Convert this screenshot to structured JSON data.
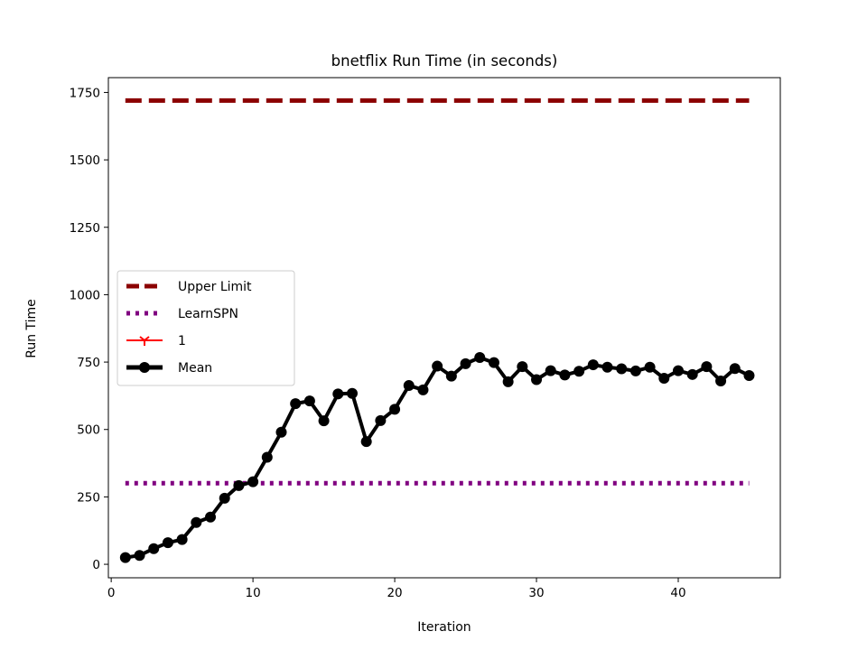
{
  "chart_data": {
    "type": "line",
    "title": "bnetflix Run Time (in seconds)",
    "xlabel": "Iteration",
    "ylabel": "Run Time",
    "xlim": [
      -0.2,
      47.2
    ],
    "ylim": [
      -50,
      1805
    ],
    "xticks": [
      0,
      10,
      20,
      30,
      40
    ],
    "yticks": [
      0,
      250,
      500,
      750,
      1000,
      1250,
      1500,
      1750
    ],
    "grid": false,
    "legend_position": "center-left",
    "series": [
      {
        "name": "Upper Limit",
        "color": "#8b0000",
        "style": "dashed",
        "x": [
          1,
          45
        ],
        "y": [
          1720,
          1720
        ]
      },
      {
        "name": "LearnSPN",
        "color": "#800080",
        "style": "dotted",
        "x": [
          1,
          45
        ],
        "y": [
          301,
          301
        ]
      },
      {
        "name": "1",
        "color": "#ff0000",
        "style": "solid-tri-marker",
        "x": [],
        "y": []
      },
      {
        "name": "Mean",
        "color": "#000000",
        "style": "solid-circle-marker",
        "x": [
          1,
          2,
          3,
          4,
          5,
          6,
          7,
          8,
          9,
          10,
          11,
          12,
          13,
          14,
          15,
          16,
          17,
          18,
          19,
          20,
          21,
          22,
          23,
          24,
          25,
          26,
          27,
          28,
          29,
          30,
          31,
          32,
          33,
          34,
          35,
          36,
          37,
          38,
          39,
          40,
          41,
          42,
          43,
          44,
          45
        ],
        "y": [
          25,
          33,
          58,
          80,
          92,
          155,
          175,
          245,
          292,
          306,
          397,
          490,
          596,
          606,
          532,
          632,
          634,
          455,
          533,
          575,
          663,
          647,
          735,
          698,
          744,
          767,
          748,
          677,
          733,
          685,
          718,
          702,
          716,
          740,
          731,
          725,
          717,
          731,
          690,
          718,
          704,
          733,
          680,
          726,
          700
        ]
      }
    ]
  }
}
